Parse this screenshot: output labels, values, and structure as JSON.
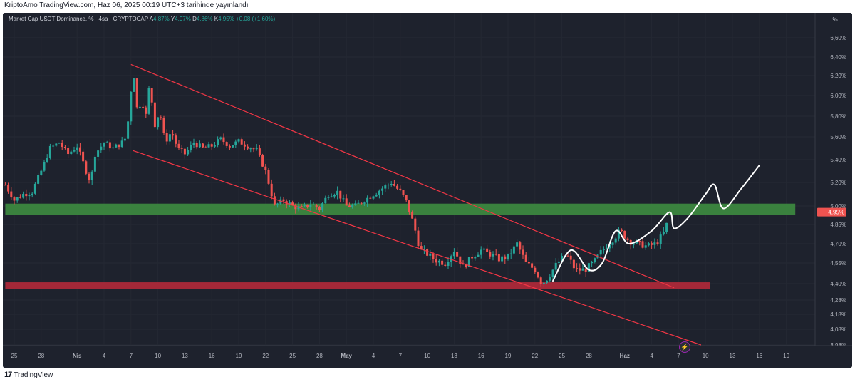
{
  "header": {
    "publish_line": "KriptoAmo TradingView.com, Haz 06, 2025 00:19 UTC+3 tarihinde yayınlandı"
  },
  "legend": {
    "symbol": "Market Cap USDT Dominance, % · 4sa · CRYPTOCAP",
    "o_label": "A",
    "o_value": "4,87%",
    "h_label": "Y",
    "h_value": "4,97%",
    "l_label": "D",
    "l_value": "4,86%",
    "c_label": "K",
    "c_value": "4,95%",
    "change": "+0,08 (+1,60%)"
  },
  "unit_button": "%",
  "footer": {
    "brand": "TradingView",
    "logo_mark": "17"
  },
  "colors": {
    "background": "#1e222d",
    "up": "#26a69a",
    "down": "#ef5350",
    "channel": "#f23645",
    "support_zone": "#b2293a",
    "resistance_zone": "#3d8c40",
    "projection": "#ffffff",
    "price_tag": "#ef5350"
  },
  "chart_data": {
    "type": "candlestick",
    "title": "Market Cap USDT Dominance, % · 4sa · CRYPTOCAP",
    "y_unit": "%",
    "ylim": [
      3.93,
      6.72
    ],
    "y_ticks": [
      "6,60%",
      "6,40%",
      "6,20%",
      "6,00%",
      "5,80%",
      "5,60%",
      "5,40%",
      "5,20%",
      "5,00%",
      "4,85%",
      "4,70%",
      "4,55%",
      "4,40%",
      "4,28%",
      "4,18%",
      "4,08%",
      "3,98%"
    ],
    "x_ticks": [
      {
        "label": "25",
        "day": -7,
        "bold": false
      },
      {
        "label": "28",
        "day": -4,
        "bold": false
      },
      {
        "label": "Nis",
        "day": 0,
        "bold": true
      },
      {
        "label": "4",
        "day": 3,
        "bold": false
      },
      {
        "label": "7",
        "day": 6,
        "bold": false
      },
      {
        "label": "10",
        "day": 9,
        "bold": false
      },
      {
        "label": "13",
        "day": 12,
        "bold": false
      },
      {
        "label": "16",
        "day": 15,
        "bold": false
      },
      {
        "label": "19",
        "day": 18,
        "bold": false
      },
      {
        "label": "22",
        "day": 21,
        "bold": false
      },
      {
        "label": "25",
        "day": 24,
        "bold": false
      },
      {
        "label": "28",
        "day": 27,
        "bold": false
      },
      {
        "label": "May",
        "day": 30,
        "bold": true
      },
      {
        "label": "4",
        "day": 33,
        "bold": false
      },
      {
        "label": "7",
        "day": 36,
        "bold": false
      },
      {
        "label": "10",
        "day": 39,
        "bold": false
      },
      {
        "label": "13",
        "day": 42,
        "bold": false
      },
      {
        "label": "16",
        "day": 45,
        "bold": false
      },
      {
        "label": "19",
        "day": 48,
        "bold": false
      },
      {
        "label": "22",
        "day": 51,
        "bold": false
      },
      {
        "label": "25",
        "day": 54,
        "bold": false
      },
      {
        "label": "28",
        "day": 57,
        "bold": false
      },
      {
        "label": "Haz",
        "day": 61,
        "bold": true
      },
      {
        "label": "4",
        "day": 64,
        "bold": false
      },
      {
        "label": "7",
        "day": 67,
        "bold": false
      },
      {
        "label": "10",
        "day": 70,
        "bold": false
      },
      {
        "label": "13",
        "day": 73,
        "bold": false
      },
      {
        "label": "16",
        "day": 76,
        "bold": false
      },
      {
        "label": "19",
        "day": 79,
        "bold": false
      }
    ],
    "close_path": [
      [
        -8.0,
        5.18
      ],
      [
        -7.0,
        5.05
      ],
      [
        -6.0,
        5.1
      ],
      [
        -5.0,
        5.12
      ],
      [
        -4.0,
        5.3
      ],
      [
        -3.0,
        5.5
      ],
      [
        -2.0,
        5.55
      ],
      [
        -1.0,
        5.45
      ],
      [
        0.0,
        5.52
      ],
      [
        1.0,
        5.3
      ],
      [
        1.5,
        5.2
      ],
      [
        2.0,
        5.45
      ],
      [
        3.0,
        5.55
      ],
      [
        4.0,
        5.5
      ],
      [
        5.0,
        5.55
      ],
      [
        5.5,
        5.6
      ],
      [
        6.0,
        6.05
      ],
      [
        6.3,
        6.22
      ],
      [
        6.7,
        5.85
      ],
      [
        7.2,
        5.95
      ],
      [
        7.7,
        5.8
      ],
      [
        8.1,
        6.15
      ],
      [
        8.6,
        5.7
      ],
      [
        9.2,
        5.85
      ],
      [
        9.8,
        5.55
      ],
      [
        10.5,
        5.65
      ],
      [
        11.2,
        5.5
      ],
      [
        12.0,
        5.45
      ],
      [
        13.0,
        5.55
      ],
      [
        14.0,
        5.5
      ],
      [
        15.0,
        5.52
      ],
      [
        16.0,
        5.58
      ],
      [
        17.0,
        5.52
      ],
      [
        18.0,
        5.56
      ],
      [
        19.0,
        5.52
      ],
      [
        20.0,
        5.48
      ],
      [
        21.0,
        5.3
      ],
      [
        22.0,
        5.0
      ],
      [
        23.0,
        5.05
      ],
      [
        24.0,
        5.0
      ],
      [
        25.0,
        4.98
      ],
      [
        26.0,
        5.02
      ],
      [
        27.0,
        4.98
      ],
      [
        28.0,
        5.1
      ],
      [
        29.0,
        5.12
      ],
      [
        30.0,
        5.0
      ],
      [
        31.0,
        5.0
      ],
      [
        32.0,
        5.05
      ],
      [
        33.0,
        5.1
      ],
      [
        34.0,
        5.15
      ],
      [
        35.0,
        5.2
      ],
      [
        36.0,
        5.12
      ],
      [
        36.6,
        5.05
      ],
      [
        37.5,
        4.85
      ],
      [
        38.2,
        4.65
      ],
      [
        39.0,
        4.62
      ],
      [
        40.0,
        4.57
      ],
      [
        41.0,
        4.55
      ],
      [
        42.0,
        4.65
      ],
      [
        43.0,
        4.52
      ],
      [
        44.0,
        4.6
      ],
      [
        45.0,
        4.65
      ],
      [
        46.0,
        4.62
      ],
      [
        47.0,
        4.58
      ],
      [
        48.0,
        4.6
      ],
      [
        49.0,
        4.7
      ],
      [
        50.0,
        4.55
      ],
      [
        51.0,
        4.5
      ],
      [
        51.8,
        4.4
      ],
      [
        52.5,
        4.45
      ],
      [
        53.5,
        4.55
      ],
      [
        54.5,
        4.62
      ],
      [
        55.5,
        4.5
      ],
      [
        56.5,
        4.5
      ],
      [
        57.5,
        4.55
      ],
      [
        58.5,
        4.65
      ],
      [
        59.5,
        4.72
      ],
      [
        60.5,
        4.8
      ],
      [
        61.5,
        4.72
      ],
      [
        62.5,
        4.7
      ],
      [
        63.5,
        4.68
      ],
      [
        64.5,
        4.7
      ],
      [
        65.0,
        4.75
      ],
      [
        65.5,
        4.8
      ],
      [
        66.0,
        4.95
      ]
    ],
    "channel_upper": {
      "start": [
        6.0,
        6.32
      ],
      "end": [
        66.5,
        4.37
      ]
    },
    "channel_lower": {
      "start": [
        6.2,
        5.48
      ],
      "end": [
        69.5,
        3.98
      ]
    },
    "zones": [
      {
        "name": "resistance",
        "from": 4.93,
        "to": 5.02,
        "day_start": -8,
        "day_end": 80
      },
      {
        "name": "support",
        "from": 4.36,
        "to": 4.41,
        "day_start": -8,
        "day_end": 70.5
      }
    ],
    "projection": [
      [
        53.0,
        4.42
      ],
      [
        55.0,
        4.65
      ],
      [
        57.0,
        4.5
      ],
      [
        58.5,
        4.55
      ],
      [
        60.0,
        4.8
      ],
      [
        61.5,
        4.7
      ],
      [
        64.0,
        4.8
      ],
      [
        66.0,
        4.95
      ],
      [
        66.5,
        4.82
      ],
      [
        68.0,
        4.9
      ],
      [
        70.0,
        5.1
      ],
      [
        71.0,
        5.18
      ],
      [
        72.0,
        4.98
      ],
      [
        74.0,
        5.15
      ],
      [
        76.0,
        5.35
      ]
    ],
    "last_price": {
      "label": "4,95%",
      "value": 4.95
    }
  }
}
